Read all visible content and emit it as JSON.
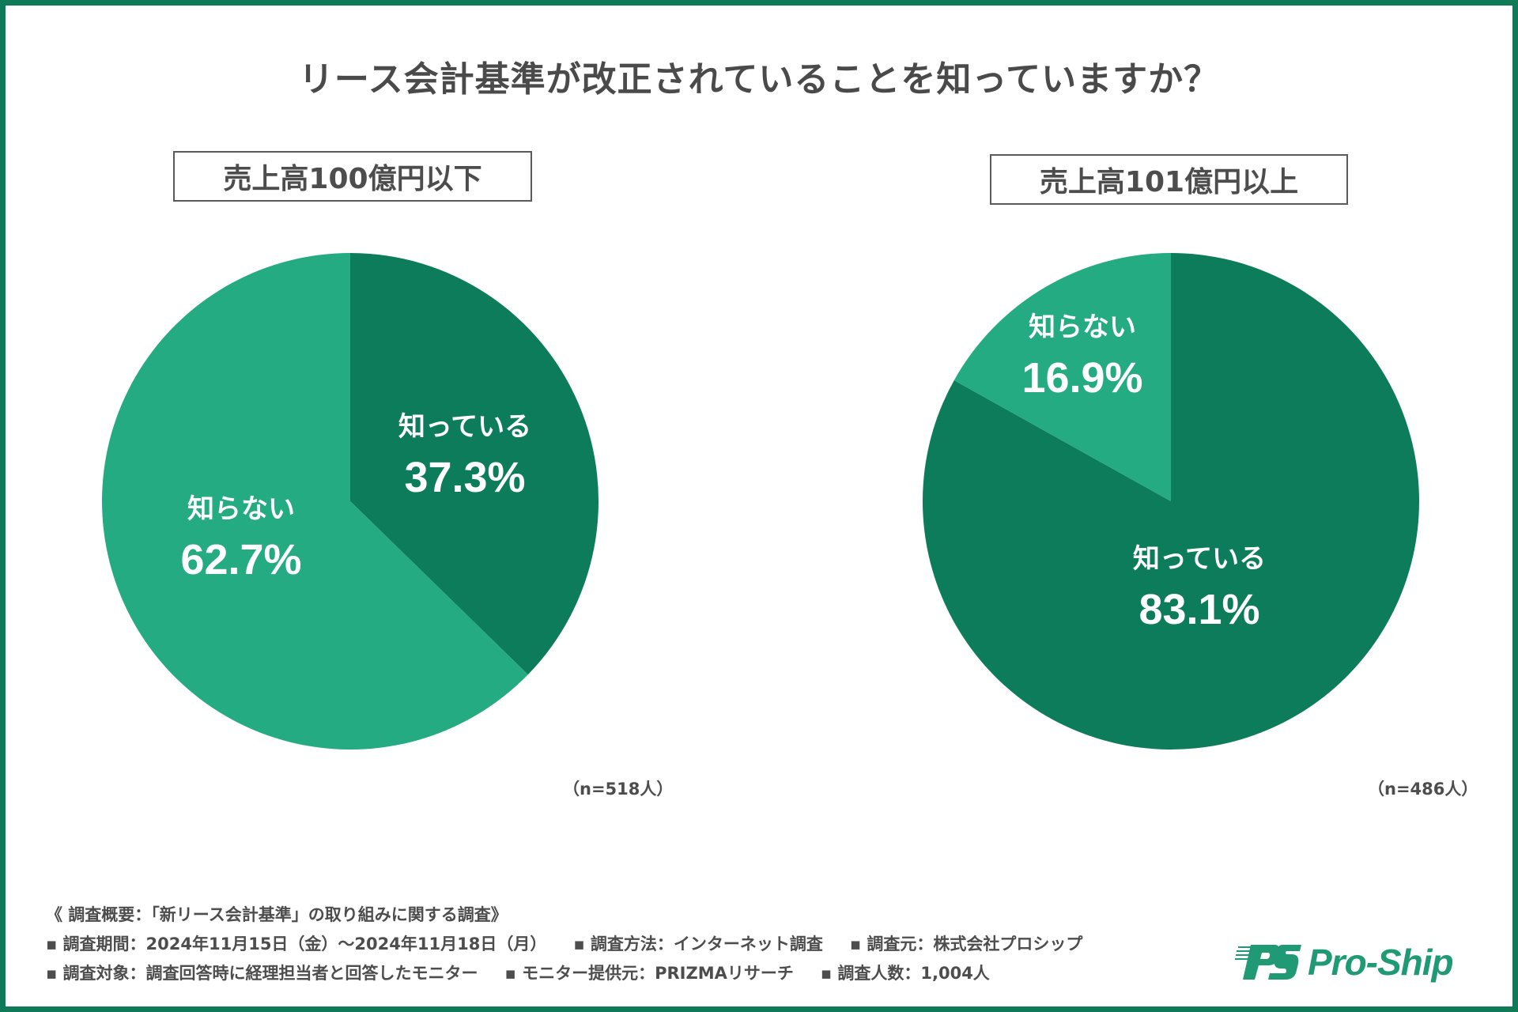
{
  "colors": {
    "frame": "#0f7a58",
    "known": "#0d7c5b",
    "unknown": "#24ab81",
    "text": "#4a4a4a",
    "logo": "#1f9a74"
  },
  "title": "リース会計基準が改正されていることを知っていますか？",
  "chart_data": [
    {
      "type": "pie",
      "title": "売上高100億円以下",
      "sample_size_label": "（n=518人）",
      "n": 518,
      "slices": [
        {
          "label": "知っている",
          "value": 37.3,
          "value_label": "37.3%",
          "color": "#0d7c5b"
        },
        {
          "label": "知らない",
          "value": 62.7,
          "value_label": "62.7%",
          "color": "#24ab81"
        }
      ],
      "start_angle_deg": 0,
      "direction": "clockwise",
      "legend": "none"
    },
    {
      "type": "pie",
      "title": "売上高101億円以上",
      "sample_size_label": "（n=486人）",
      "n": 486,
      "slices": [
        {
          "label": "知っている",
          "value": 83.1,
          "value_label": "83.1%",
          "color": "#0d7c5b"
        },
        {
          "label": "知らない",
          "value": 16.9,
          "value_label": "16.9%",
          "color": "#24ab81"
        }
      ],
      "start_angle_deg": 0,
      "direction": "clockwise",
      "legend": "none"
    }
  ],
  "footer": {
    "heading": "《 調査概要：「新リース会計基準」の取り組みに関する調査》",
    "rows": [
      [
        "▪ 調査期間：2024年11月15日（金）～2024年11月18日（月）",
        "▪ 調査方法：インターネット調査",
        "▪ 調査元：株式会社プロシップ"
      ],
      [
        "▪ 調査対象：調査回答時に経理担当者と回答したモニター",
        "▪ モニター提供元：PRIZMAリサーチ",
        "▪ 調査人数：1,004人"
      ]
    ]
  },
  "logo": {
    "mark": "PS",
    "text": "Pro-Ship"
  }
}
